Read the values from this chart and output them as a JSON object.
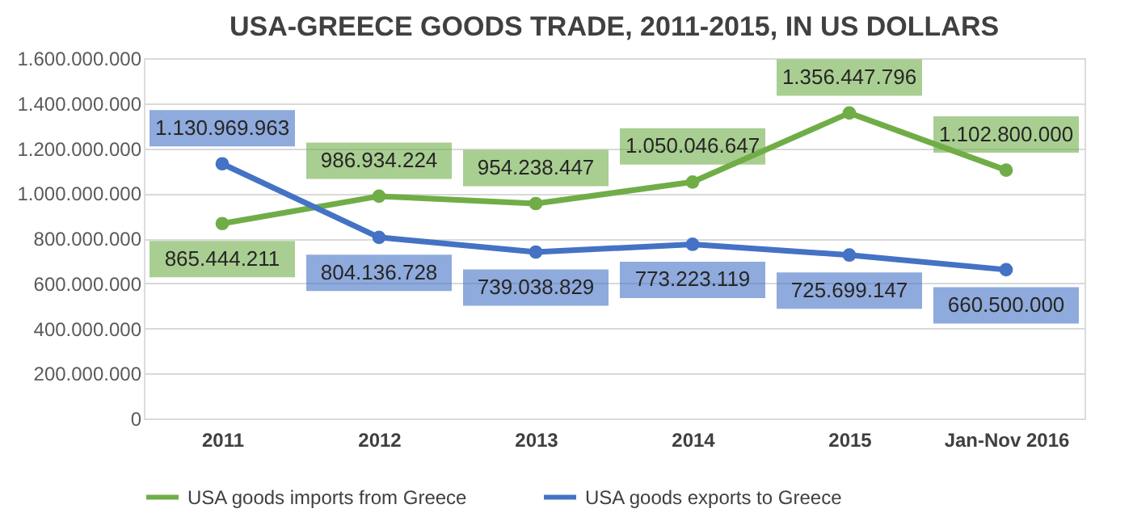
{
  "chart_data": {
    "type": "line",
    "title": "USA-GREECE GOODS TRADE, 2011-2015, IN US DOLLARS",
    "categories": [
      "2011",
      "2012",
      "2013",
      "2014",
      "2015",
      "Jan-Nov 2016"
    ],
    "series": [
      {
        "name": "USA goods imports from Greece",
        "color": "#70ad47",
        "values": [
          865444211,
          986934224,
          954238447,
          1050046647,
          1356447796,
          1102800000
        ],
        "value_labels": [
          "865.444.211",
          "986.934.224",
          "954.238.447",
          "1.050.046.647",
          "1.356.447.796",
          "1.102.800.000"
        ]
      },
      {
        "name": "USA goods exports to Greece",
        "color": "#4472c4",
        "values": [
          1130969963,
          804136728,
          739038829,
          773223119,
          725699147,
          660500000
        ],
        "value_labels": [
          "1.130.969.963",
          "804.136.728",
          "739.038.829",
          "773.223.119",
          "725.699.147",
          "660.500.000"
        ]
      }
    ],
    "ylim": [
      0,
      1600000000
    ],
    "yticks": [
      {
        "value": 0,
        "label": "0"
      },
      {
        "value": 200000000,
        "label": "200.000.000"
      },
      {
        "value": 400000000,
        "label": "400.000.000"
      },
      {
        "value": 600000000,
        "label": "600.000.000"
      },
      {
        "value": 800000000,
        "label": "800.000.000"
      },
      {
        "value": 1000000000,
        "label": "1.000.000.000"
      },
      {
        "value": 1200000000,
        "label": "1.200.000.000"
      },
      {
        "value": 1400000000,
        "label": "1.400.000.000"
      },
      {
        "value": 1600000000,
        "label": "1.600.000.000"
      }
    ],
    "grid": "y",
    "legend": "bottom",
    "marker": "circle",
    "line_style": "solid",
    "data_labels": true
  }
}
